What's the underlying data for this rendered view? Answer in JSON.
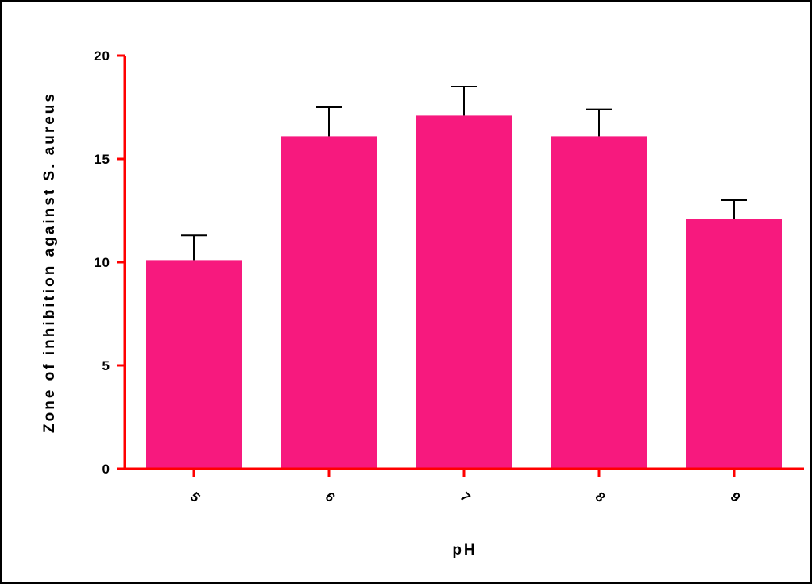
{
  "chart_data": {
    "type": "bar",
    "title": "",
    "xlabel": "pH",
    "ylabel": "Zone of inhibition against S. aureus",
    "categories": [
      "5",
      "6",
      "7",
      "8",
      "9"
    ],
    "series": [
      {
        "values": [
          10.1,
          16.1,
          17.1,
          16.1,
          12.1
        ],
        "error": [
          1.2,
          1.4,
          1.4,
          1.3,
          0.9
        ]
      }
    ],
    "ylim": [
      0,
      20
    ],
    "yticks": [
      "0",
      "5",
      "10",
      "15",
      "20"
    ],
    "grid": false,
    "legend": "none",
    "colors": {
      "bar": "#f7197e",
      "axis": "#ff0000",
      "error_bar": "#000000",
      "text": "#000000"
    }
  }
}
